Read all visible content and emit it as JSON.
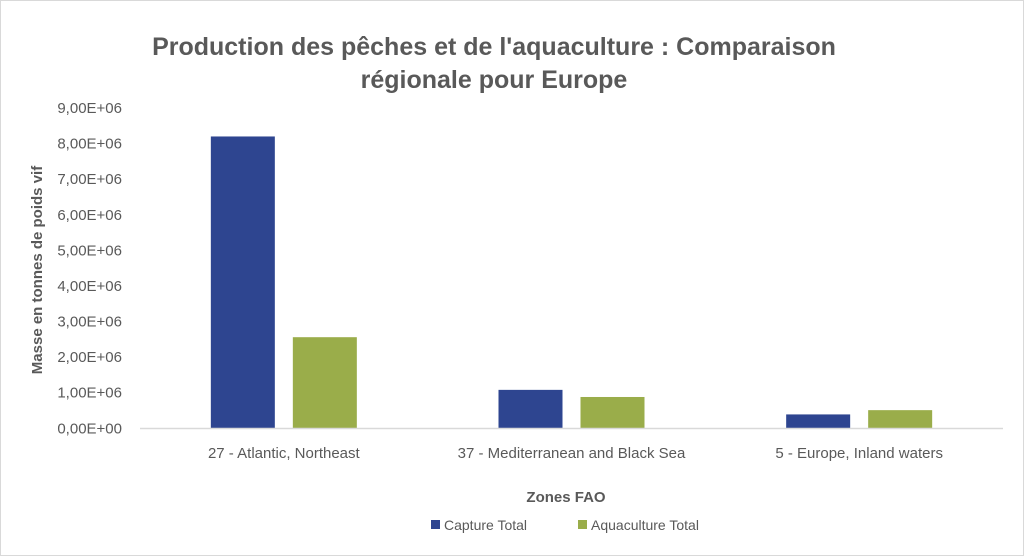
{
  "chart_data": {
    "type": "bar",
    "title": "Production des pêches et de l'aquaculture : Comparaison régionale pour Europe",
    "title_lines": [
      "Production des pêches et de l'aquaculture : Comparaison",
      "régionale pour Europe"
    ],
    "xlabel": "Zones FAO",
    "ylabel": "Masse en tonnes de poids vif",
    "categories": [
      "27 - Atlantic, Northeast",
      "37 - Mediterranean and Black Sea",
      "5 - Europe, Inland waters"
    ],
    "series": [
      {
        "name": "Capture Total",
        "color": "#2e4590",
        "values": [
          8200000,
          1080000,
          390000
        ]
      },
      {
        "name": "Aquaculture Total",
        "color": "#9aad4a",
        "values": [
          2560000,
          880000,
          510000
        ]
      }
    ],
    "ylim": [
      0,
      9000000
    ],
    "yticks": [
      0,
      1000000,
      2000000,
      3000000,
      4000000,
      5000000,
      6000000,
      7000000,
      8000000,
      9000000
    ],
    "ytick_labels": [
      "0,00E+00",
      "1,00E+06",
      "2,00E+06",
      "3,00E+06",
      "4,00E+06",
      "5,00E+06",
      "6,00E+06",
      "7,00E+06",
      "8,00E+06",
      "9,00E+06"
    ],
    "grid": false,
    "legend_position": "bottom"
  }
}
